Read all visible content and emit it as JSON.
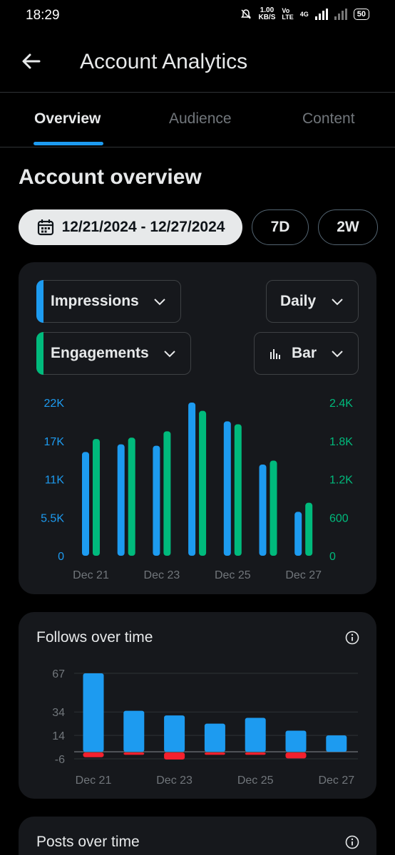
{
  "status": {
    "time": "18:29",
    "speed_value": "1.00",
    "speed_unit": "KB/S",
    "volte_top": "Vo",
    "volte_bottom": "LTE",
    "net_type": "4G",
    "battery": "50"
  },
  "header": {
    "title": "Account Analytics",
    "back_icon": "arrow-left-icon"
  },
  "tabs": [
    {
      "label": "Overview",
      "active": true
    },
    {
      "label": "Audience",
      "active": false
    },
    {
      "label": "Content",
      "active": false
    }
  ],
  "overview": {
    "title": "Account overview",
    "date_range": "12/21/2024 - 12/27/2024",
    "range_chips": [
      "7D",
      "2W"
    ]
  },
  "metrics_card": {
    "metric1": "Impressions",
    "metric2": "Engagements",
    "interval": "Daily",
    "chart_type": "Bar",
    "colors": {
      "impressions": "#1d9bf0",
      "engagements": "#00ba7c"
    }
  },
  "follows_card": {
    "title": "Follows over time",
    "colors": {
      "gained": "#1d9bf0",
      "lost": "#f4212e"
    }
  },
  "posts_card": {
    "title": "Posts over time"
  },
  "chart_data": [
    {
      "type": "bar",
      "categories": [
        "Dec 21",
        "Dec 22",
        "Dec 23",
        "Dec 24",
        "Dec 25",
        "Dec 26",
        "Dec 27"
      ],
      "x_tick_labels": [
        "Dec 21",
        "Dec 23",
        "Dec 25",
        "Dec 27"
      ],
      "series": [
        {
          "name": "Impressions",
          "axis": "left",
          "values": [
            14900,
            16000,
            15800,
            22000,
            19300,
            13100,
            6300
          ]
        },
        {
          "name": "Engagements",
          "axis": "right",
          "values": [
            1830,
            1850,
            1950,
            2270,
            2060,
            1490,
            830
          ]
        }
      ],
      "y_left_ticks": [
        "22K",
        "17K",
        "11K",
        "5.5K",
        "0"
      ],
      "y_left_range": [
        0,
        22000
      ],
      "y_right_ticks": [
        "2.4K",
        "1.8K",
        "1.2K",
        "600",
        "0"
      ],
      "y_right_range": [
        0,
        2400
      ],
      "grid": false
    },
    {
      "type": "bar",
      "categories": [
        "Dec 21",
        "Dec 22",
        "Dec 23",
        "Dec 24",
        "Dec 25",
        "Dec 26",
        "Dec 27"
      ],
      "x_tick_labels": [
        "Dec 21",
        "Dec 23",
        "Dec 25",
        "Dec 27"
      ],
      "series": [
        {
          "name": "Gained",
          "values": [
            67,
            35,
            31,
            24,
            29,
            18,
            14
          ]
        },
        {
          "name": "Lost",
          "values": [
            -4,
            -2,
            -6,
            -2,
            -2,
            -5,
            0
          ]
        }
      ],
      "y_ticks": [
        "67",
        "34",
        "14",
        "-6"
      ],
      "y_range": [
        -6,
        67
      ],
      "grid": true
    }
  ]
}
